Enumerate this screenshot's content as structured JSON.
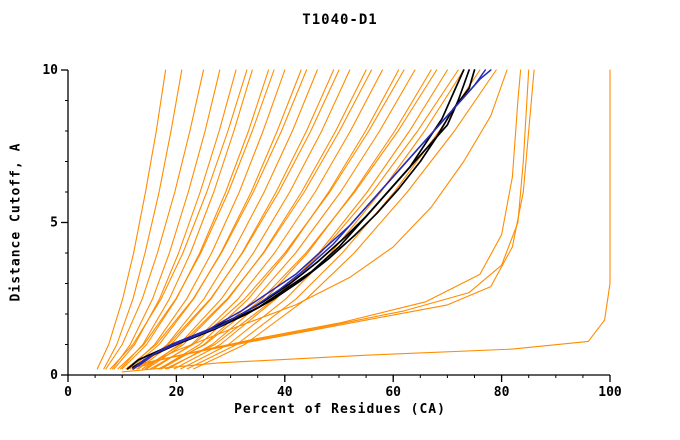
{
  "chart_data": {
    "type": "line",
    "title": "T1040-D1",
    "xlabel": "Percent of Residues (CA)",
    "ylabel": "Distance Cutoff, A",
    "xlim": [
      0,
      100
    ],
    "ylim": [
      0,
      10
    ],
    "xticks": [
      0,
      20,
      40,
      60,
      80,
      100
    ],
    "x_minor_step": 5,
    "yticks": [
      0,
      5,
      10
    ],
    "y_minor_step": 1,
    "grid": false,
    "legend": "none",
    "colors": {
      "orange": "#ff8c00",
      "black": "#000000",
      "blue": "#2a2ab4"
    },
    "bundle_cutoffs": [
      0.2,
      1,
      2.5,
      4,
      6,
      8,
      10
    ],
    "orange_bundle_percents": [
      [
        7,
        10,
        13.7,
        16.5,
        19.7,
        22.5,
        25
      ],
      [
        8.2,
        11.5,
        15.6,
        18.7,
        22.2,
        25.3,
        28
      ],
      [
        8.5,
        12.3,
        16.9,
        20.4,
        24.4,
        27.9,
        31
      ],
      [
        9.7,
        13.8,
        18.7,
        22.6,
        26.9,
        30.6,
        34
      ],
      [
        10,
        14.5,
        20,
        24.3,
        29.1,
        33.3,
        37
      ],
      [
        11.2,
        16,
        21.9,
        26.5,
        31.6,
        36,
        40
      ],
      [
        11.5,
        16.8,
        23.2,
        28.2,
        33.8,
        38.6,
        43
      ],
      [
        12.7,
        18.3,
        25.1,
        30.3,
        36.2,
        41.4,
        46
      ],
      [
        13,
        19,
        26.4,
        32.1,
        38.4,
        44,
        49
      ],
      [
        14.2,
        20.5,
        28.3,
        34.2,
        40.9,
        46.8,
        52
      ],
      [
        14.5,
        21.3,
        29.6,
        36,
        43.1,
        49.4,
        55
      ],
      [
        15.7,
        22.8,
        31.4,
        38.1,
        45.6,
        52.1,
        58
      ],
      [
        16.9,
        24.3,
        33.3,
        40.3,
        48.1,
        54.9,
        61
      ],
      [
        17.2,
        25.1,
        34.6,
        42,
        50.3,
        57.5,
        64
      ],
      [
        18.4,
        26.6,
        36.5,
        44.2,
        52.7,
        60.3,
        67
      ],
      [
        19.6,
        28.1,
        38.4,
        46.3,
        55.2,
        63,
        70
      ],
      [
        20.8,
        29.6,
        40.2,
        48.5,
        57.7,
        65.8,
        73
      ],
      [
        22,
        31.1,
        42.1,
        50.6,
        60.2,
        68.5,
        76
      ],
      [
        23.2,
        32.6,
        44,
        52.8,
        62.6,
        71.3,
        79
      ],
      [
        7.8,
        12,
        17.2,
        21.2,
        25.6,
        29.5,
        33
      ],
      [
        9.2,
        14,
        19.9,
        24.5,
        29.6,
        34,
        38
      ],
      [
        10.7,
        16.3,
        23.1,
        28.3,
        34.2,
        39.4,
        44
      ],
      [
        12.2,
        18.5,
        26.3,
        32.2,
        38.9,
        44.8,
        50
      ],
      [
        13.7,
        20.8,
        29.4,
        36.1,
        43.6,
        50.1,
        56
      ],
      [
        15.2,
        23.1,
        32.6,
        40,
        48.3,
        55.5,
        62
      ],
      [
        16.7,
        25.3,
        35.8,
        43.9,
        52.9,
        60.9,
        68
      ],
      [
        18,
        27.1,
        38.1,
        46.6,
        56.2,
        64.5,
        72
      ],
      [
        5.4,
        7.5,
        10.1,
        12.1,
        14.3,
        16.3,
        18
      ],
      [
        6.6,
        9,
        12,
        14.2,
        16.8,
        19,
        21
      ]
    ],
    "orange_extra_series": [
      [
        [
          10,
          0.1
        ],
        [
          28,
          0.4
        ],
        [
          55,
          0.65
        ],
        [
          82,
          0.85
        ],
        [
          96,
          1.1
        ],
        [
          99,
          1.8
        ],
        [
          100,
          3
        ],
        [
          100,
          10
        ]
      ],
      [
        [
          12,
          0.3
        ],
        [
          25,
          0.8
        ],
        [
          40,
          1.3
        ],
        [
          55,
          1.8
        ],
        [
          70,
          2.3
        ],
        [
          78,
          2.9
        ],
        [
          82,
          4.2
        ],
        [
          84,
          6
        ],
        [
          85,
          8
        ],
        [
          86,
          10
        ]
      ],
      [
        [
          13,
          0.35
        ],
        [
          27,
          0.9
        ],
        [
          45,
          1.5
        ],
        [
          62,
          2.1
        ],
        [
          74,
          2.7
        ],
        [
          80,
          3.6
        ],
        [
          83,
          5
        ],
        [
          84,
          7
        ],
        [
          85,
          10
        ]
      ],
      [
        [
          11,
          0.25
        ],
        [
          22,
          0.7
        ],
        [
          35,
          1.2
        ],
        [
          50,
          1.7
        ],
        [
          66,
          2.4
        ],
        [
          76,
          3.3
        ],
        [
          80,
          4.6
        ],
        [
          82,
          6.5
        ],
        [
          83,
          9
        ],
        [
          83.5,
          10
        ]
      ],
      [
        [
          14,
          0.3
        ],
        [
          20,
          0.8
        ],
        [
          30,
          1.5
        ],
        [
          42,
          2.3
        ],
        [
          52,
          3.2
        ],
        [
          60,
          4.2
        ],
        [
          67,
          5.5
        ],
        [
          73,
          7
        ],
        [
          78,
          8.5
        ],
        [
          81,
          10
        ]
      ]
    ],
    "black_series": [
      [
        [
          11,
          0.2
        ],
        [
          13,
          0.5
        ],
        [
          18,
          0.9
        ],
        [
          25,
          1.4
        ],
        [
          31,
          1.9
        ],
        [
          36,
          2.4
        ],
        [
          41,
          3
        ],
        [
          46,
          3.7
        ],
        [
          51,
          4.5
        ],
        [
          55,
          5.2
        ],
        [
          59,
          6
        ],
        [
          63,
          6.8
        ],
        [
          66,
          7.6
        ],
        [
          69,
          8.4
        ],
        [
          71,
          9.2
        ],
        [
          73,
          10
        ]
      ],
      [
        [
          12,
          0.2
        ],
        [
          15,
          0.6
        ],
        [
          20,
          1
        ],
        [
          27,
          1.5
        ],
        [
          33,
          2
        ],
        [
          38,
          2.5
        ],
        [
          43,
          3.1
        ],
        [
          48,
          3.8
        ],
        [
          53,
          4.6
        ],
        [
          57,
          5.3
        ],
        [
          61,
          6.1
        ],
        [
          65,
          7
        ],
        [
          68,
          7.8
        ],
        [
          71,
          8.7
        ],
        [
          74,
          9.4
        ],
        [
          75,
          10
        ]
      ],
      [
        [
          12,
          0.25
        ],
        [
          16,
          0.7
        ],
        [
          22,
          1.2
        ],
        [
          29,
          1.7
        ],
        [
          35,
          2.2
        ],
        [
          40,
          2.8
        ],
        [
          45,
          3.4
        ],
        [
          50,
          4.2
        ],
        [
          54,
          5
        ],
        [
          58,
          5.8
        ],
        [
          62,
          6.6
        ],
        [
          66,
          7.4
        ],
        [
          70,
          8.2
        ],
        [
          72,
          9
        ],
        [
          74,
          10
        ]
      ]
    ],
    "blue_series": [
      [
        [
          12,
          0.2
        ],
        [
          14,
          0.5
        ],
        [
          19,
          1
        ],
        [
          26,
          1.5
        ],
        [
          32,
          2.1
        ],
        [
          37,
          2.7
        ],
        [
          42,
          3.3
        ],
        [
          47,
          4.1
        ],
        [
          52,
          4.9
        ],
        [
          56,
          5.7
        ],
        [
          60,
          6.5
        ],
        [
          64,
          7.3
        ],
        [
          68,
          8.1
        ],
        [
          72,
          8.9
        ],
        [
          75,
          9.5
        ],
        [
          77,
          10
        ]
      ],
      [
        [
          13,
          0.3
        ],
        [
          16,
          0.7
        ],
        [
          21,
          1.1
        ],
        [
          28,
          1.6
        ],
        [
          34,
          2.2
        ],
        [
          39,
          2.8
        ],
        [
          44,
          3.5
        ],
        [
          49,
          4.3
        ],
        [
          53,
          5.1
        ],
        [
          57,
          5.9
        ],
        [
          61,
          6.7
        ],
        [
          65,
          7.5
        ],
        [
          69,
          8.3
        ],
        [
          73,
          9.1
        ],
        [
          76,
          9.7
        ],
        [
          78,
          10
        ]
      ]
    ]
  }
}
